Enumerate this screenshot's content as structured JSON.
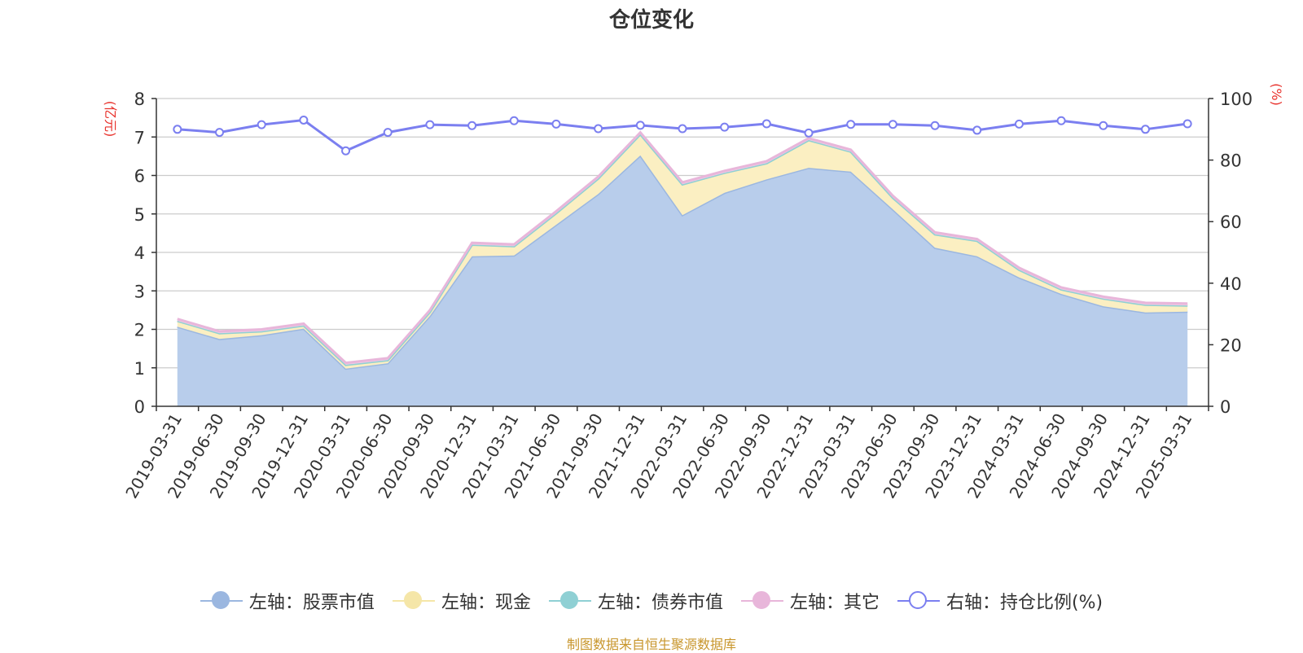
{
  "title": "仓位变化",
  "source": "制图数据来自恒生聚源数据库",
  "chart_data": {
    "type": "area",
    "left_axis": {
      "label": "(亿元)",
      "min": 0,
      "max": 8,
      "ticks": [
        "0",
        "1",
        "2",
        "3",
        "4",
        "5",
        "6",
        "7",
        "8"
      ]
    },
    "right_axis": {
      "label": "(%)",
      "min": 0,
      "max": 100,
      "ticks": [
        "0",
        "20",
        "40",
        "60",
        "80",
        "100"
      ]
    },
    "categories": [
      "2019-03-31",
      "2019-06-30",
      "2019-09-30",
      "2019-12-31",
      "2020-03-31",
      "2020-06-30",
      "2020-09-30",
      "2020-12-31",
      "2021-03-31",
      "2021-06-30",
      "2021-09-30",
      "2021-12-31",
      "2022-03-31",
      "2022-06-30",
      "2022-09-30",
      "2022-12-31",
      "2023-03-31",
      "2023-06-30",
      "2023-09-30",
      "2023-12-31",
      "2024-03-31",
      "2024-06-30",
      "2024-09-30",
      "2024-12-31",
      "2025-03-31"
    ],
    "series": [
      {
        "name": "左轴：股票市值",
        "axis": "left",
        "color": "#9bb7e0",
        "fill": "#b8cdeb",
        "values": [
          2.07,
          1.75,
          1.85,
          2.02,
          0.98,
          1.12,
          2.35,
          3.9,
          3.92,
          4.72,
          5.52,
          6.52,
          4.97,
          5.55,
          5.9,
          6.2,
          6.1,
          5.12,
          4.12,
          3.9,
          3.35,
          2.92,
          2.6,
          2.44,
          2.46
        ]
      },
      {
        "name": "左轴：现金",
        "axis": "left",
        "color": "#f5e6a8",
        "fill": "#fbefc2",
        "values": [
          0.15,
          0.15,
          0.1,
          0.08,
          0.1,
          0.08,
          0.1,
          0.3,
          0.24,
          0.3,
          0.4,
          0.55,
          0.8,
          0.52,
          0.42,
          0.72,
          0.52,
          0.3,
          0.35,
          0.4,
          0.2,
          0.12,
          0.2,
          0.2,
          0.16
        ]
      },
      {
        "name": "左轴：债券市值",
        "axis": "left",
        "color": "#8fd0d4",
        "fill": "#b6e2e4",
        "values": [
          0,
          0,
          0,
          0,
          0,
          0,
          0,
          0,
          0,
          0,
          0,
          0,
          0,
          0,
          0,
          0,
          0,
          0,
          0,
          0,
          0,
          0,
          0,
          0,
          0
        ]
      },
      {
        "name": "左轴：其它",
        "axis": "left",
        "color": "#e8b6da",
        "fill": "#f0cbe5",
        "values": [
          0.05,
          0.05,
          0.05,
          0.05,
          0.05,
          0.05,
          0.05,
          0.05,
          0.05,
          0.05,
          0.05,
          0.05,
          0.05,
          0.05,
          0.05,
          0.05,
          0.05,
          0.05,
          0.05,
          0.05,
          0.05,
          0.05,
          0.05,
          0.05,
          0.05
        ]
      },
      {
        "name": "右轴：持仓比例(%)",
        "axis": "right",
        "color": "#7b7ff0",
        "type": "line",
        "values": [
          90,
          89,
          91.5,
          93,
          83,
          89,
          91.5,
          91.2,
          92.8,
          91.7,
          90.2,
          91.3,
          90.2,
          90.7,
          91.8,
          88.8,
          91.6,
          91.6,
          91.2,
          89.7,
          91.7,
          92.8,
          91.2,
          90,
          91.8
        ]
      }
    ]
  },
  "legend": [
    {
      "label": "左轴：股票市值",
      "color": "#9bb7e0",
      "dot_fill": "#9bb7e0"
    },
    {
      "label": "左轴：现金",
      "color": "#f5e6a8",
      "dot_fill": "#f5e6a8"
    },
    {
      "label": "左轴：债券市值",
      "color": "#8fd0d4",
      "dot_fill": "#8fd0d4"
    },
    {
      "label": "左轴：其它",
      "color": "#e8b6da",
      "dot_fill": "#e8b6da"
    },
    {
      "label": "右轴：持仓比例(%)",
      "color": "#7b7ff0",
      "dot_fill": "#ffffff"
    }
  ]
}
